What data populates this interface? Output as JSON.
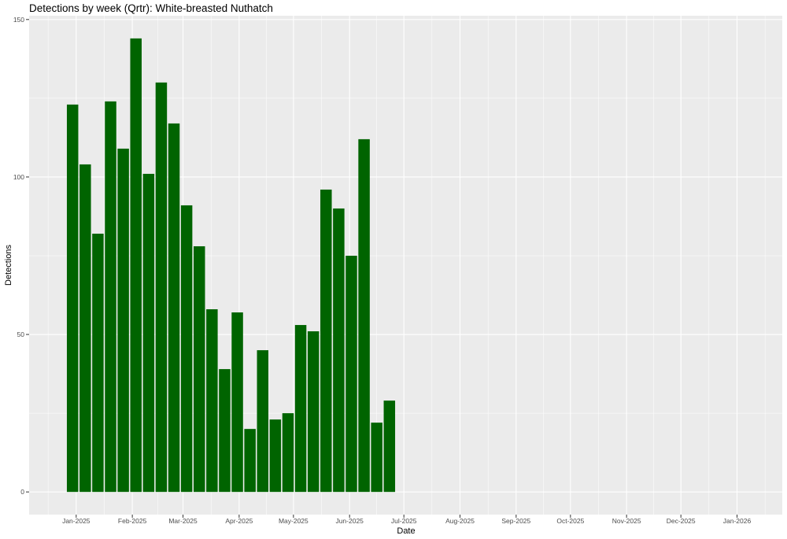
{
  "chart_data": {
    "type": "bar",
    "title": "Detections by week (Qrtr): White-breasted Nuthatch",
    "xlabel": "Date",
    "ylabel": "Detections",
    "ylim": [
      -7.2,
      151.2
    ],
    "xlim": [
      "2024-12-06",
      "2026-01-26"
    ],
    "y_ticks": [
      0,
      50,
      100,
      150
    ],
    "x_ticks": [
      {
        "date": "2025-01-01",
        "label": "Jan-2025"
      },
      {
        "date": "2025-02-01",
        "label": "Feb-2025"
      },
      {
        "date": "2025-03-01",
        "label": "Mar-2025"
      },
      {
        "date": "2025-04-01",
        "label": "Apr-2025"
      },
      {
        "date": "2025-05-01",
        "label": "May-2025"
      },
      {
        "date": "2025-06-01",
        "label": "Jun-2025"
      },
      {
        "date": "2025-07-01",
        "label": "Jul-2025"
      },
      {
        "date": "2025-08-01",
        "label": "Aug-2025"
      },
      {
        "date": "2025-09-01",
        "label": "Sep-2025"
      },
      {
        "date": "2025-10-01",
        "label": "Oct-2025"
      },
      {
        "date": "2025-11-01",
        "label": "Nov-2025"
      },
      {
        "date": "2025-12-01",
        "label": "Dec-2025"
      },
      {
        "date": "2026-01-01",
        "label": "Jan-2026"
      }
    ],
    "grid": true,
    "bar_color": "#006400",
    "panel_color": "#ebebeb",
    "grid_color": "#ffffff",
    "dates": [
      "2024-12-30",
      "2025-01-06",
      "2025-01-13",
      "2025-01-20",
      "2025-01-27",
      "2025-02-03",
      "2025-02-10",
      "2025-02-17",
      "2025-02-24",
      "2025-03-03",
      "2025-03-10",
      "2025-03-17",
      "2025-03-24",
      "2025-03-31",
      "2025-04-07",
      "2025-04-14",
      "2025-04-21",
      "2025-04-28",
      "2025-05-05",
      "2025-05-12",
      "2025-05-19",
      "2025-05-26",
      "2025-06-02",
      "2025-06-09",
      "2025-06-16",
      "2025-06-23"
    ],
    "values": [
      123,
      104,
      82,
      124,
      109,
      144,
      101,
      130,
      117,
      91,
      78,
      58,
      39,
      57,
      20,
      45,
      23,
      25,
      53,
      51,
      96,
      90,
      75,
      112,
      22,
      29
    ]
  }
}
